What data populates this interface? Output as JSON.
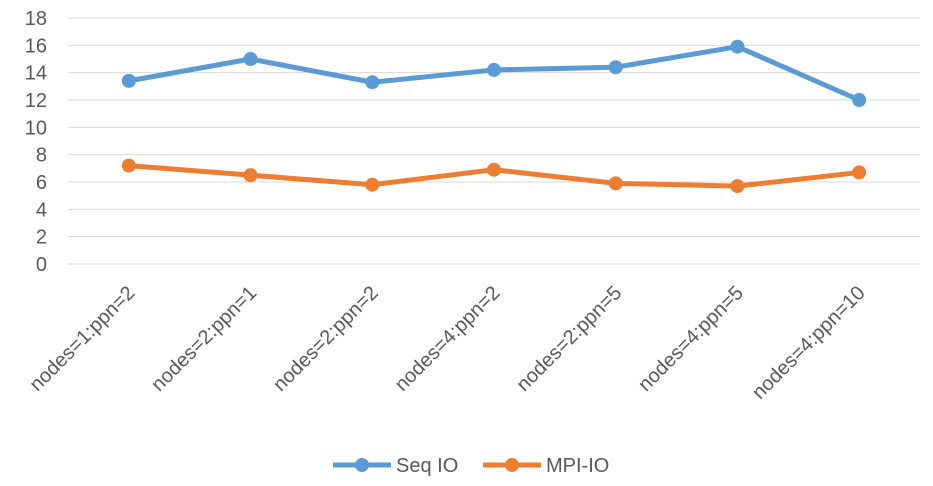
{
  "chart_data": {
    "type": "line",
    "title": "",
    "xlabel": "",
    "ylabel": "",
    "categories": [
      "nodes=1:ppn=2",
      "nodes=2:ppn=1",
      "nodes=2:ppn=2",
      "nodes=4:ppn=2",
      "nodes=2:ppn=5",
      "nodes=4:ppn=5",
      "nodes=4:ppn=10"
    ],
    "ylim": [
      0,
      18
    ],
    "yticks": [
      0,
      2,
      4,
      6,
      8,
      10,
      12,
      14,
      16,
      18
    ],
    "grid": true,
    "legend": "bottom",
    "series": [
      {
        "name": "Seq IO",
        "color": "#5b9bd5",
        "values": [
          13.4,
          15.0,
          13.3,
          14.2,
          14.4,
          15.9,
          12.0
        ]
      },
      {
        "name": "MPI-IO",
        "color": "#ed7d31",
        "values": [
          7.2,
          6.5,
          5.8,
          6.9,
          5.9,
          5.7,
          6.7
        ]
      }
    ]
  }
}
